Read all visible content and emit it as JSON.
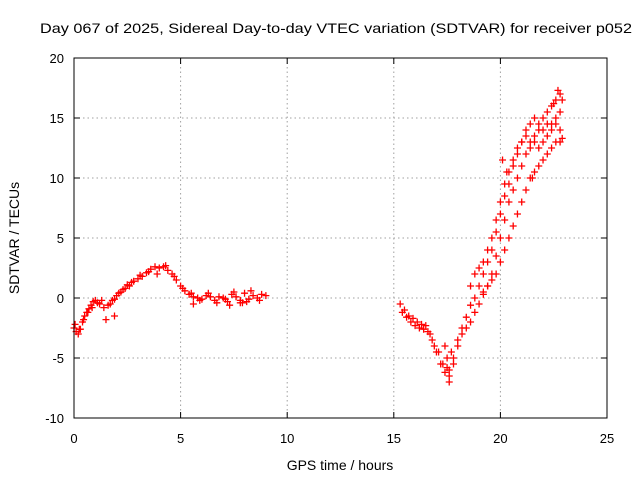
{
  "chart_data": {
    "type": "scatter",
    "title": "Day 067 of 2025, Sidereal Day-to-day VTEC variation (SDTVAR) for receiver p052",
    "xlabel": "GPS time / hours",
    "ylabel": "SDTVAR / TECUs",
    "xlim": [
      0,
      25
    ],
    "ylim": [
      -10,
      20
    ],
    "xticks": [
      "0",
      "5",
      "10",
      "15",
      "20",
      "25"
    ],
    "yticks": [
      "20",
      "15",
      "10",
      "5",
      "0",
      "-5",
      "-10"
    ],
    "xtick_values": [
      0,
      5,
      10,
      15,
      20,
      25
    ],
    "ytick_values": [
      20,
      15,
      10,
      5,
      0,
      -5,
      -10
    ],
    "grid": true,
    "marker": "+",
    "color": "#ff0000",
    "series": [
      {
        "name": "SDTVAR",
        "x": [
          0.0,
          0.1,
          0.2,
          0.3,
          0.4,
          0.5,
          0.6,
          0.7,
          0.8,
          0.9,
          1.0,
          1.2,
          1.4,
          1.6,
          1.8,
          2.0,
          2.2,
          2.4,
          2.6,
          2.8,
          3.0,
          3.2,
          3.4,
          3.6,
          3.8,
          4.0,
          4.2,
          4.4,
          4.6,
          4.8,
          5.0,
          5.2,
          5.4,
          5.6,
          5.8,
          6.0,
          6.2,
          6.4,
          6.6,
          6.8,
          7.0,
          7.2,
          7.4,
          7.6,
          7.8,
          8.0,
          8.2,
          8.4,
          8.6,
          8.8,
          9.0,
          0.05,
          0.25,
          0.45,
          0.65,
          0.85,
          1.1,
          1.3,
          1.7,
          1.9,
          2.1,
          2.3,
          2.5,
          2.7,
          3.1,
          3.5,
          3.9,
          4.3,
          4.7,
          5.1,
          5.5,
          5.9,
          6.3,
          6.7,
          7.1,
          7.5,
          7.9,
          8.3,
          8.7,
          1.5,
          1.9,
          5.6,
          7.3,
          7.8,
          8.1,
          15.3,
          15.5,
          15.7,
          15.9,
          16.1,
          16.3,
          16.5,
          16.7,
          16.9,
          17.1,
          17.3,
          17.5,
          17.6,
          17.8,
          18.0,
          18.2,
          18.4,
          18.6,
          18.8,
          19.0,
          19.2,
          19.4,
          19.6,
          19.8,
          20.0,
          20.2,
          20.4,
          20.6,
          20.8,
          21.0,
          21.2,
          21.4,
          21.6,
          21.8,
          22.0,
          22.2,
          22.4,
          22.6,
          22.8,
          22.9,
          15.4,
          15.6,
          15.8,
          16.0,
          16.2,
          16.4,
          16.6,
          16.8,
          17.0,
          17.2,
          17.4,
          17.6,
          17.8,
          18.0,
          18.2,
          18.4,
          18.6,
          18.8,
          19.0,
          19.2,
          19.4,
          19.6,
          19.8,
          20.0,
          20.2,
          20.4,
          20.6,
          20.8,
          21.0,
          21.2,
          21.4,
          21.6,
          21.8,
          22.0,
          22.2,
          22.4,
          22.6,
          22.8,
          18.6,
          18.8,
          19.0,
          19.2,
          19.4,
          19.6,
          19.8,
          20.0,
          20.2,
          20.4,
          20.6,
          20.8,
          21.0,
          21.2,
          21.4,
          21.6,
          21.8,
          22.0,
          22.2,
          22.4,
          22.6,
          22.8,
          19.2,
          19.4,
          19.6,
          19.8,
          20.0,
          20.2,
          20.4,
          20.6,
          20.8,
          21.0,
          21.2,
          21.4,
          21.6,
          21.8,
          22.0,
          22.2,
          22.4,
          22.6,
          22.8,
          22.9,
          17.4,
          17.5,
          17.6,
          17.7,
          20.1,
          20.3,
          21.5,
          22.5,
          22.7
        ],
        "y": [
          -2.5,
          -2.8,
          -3.0,
          -2.6,
          -2.0,
          -1.5,
          -1.2,
          -0.9,
          -0.6,
          -0.3,
          -0.2,
          -0.5,
          -0.8,
          -0.6,
          -0.2,
          0.2,
          0.5,
          0.8,
          1.0,
          1.4,
          1.6,
          1.8,
          2.1,
          2.4,
          2.6,
          2.5,
          2.6,
          2.3,
          2.0,
          1.5,
          1.0,
          0.6,
          0.3,
          0.1,
          0.0,
          -0.1,
          0.2,
          0.1,
          -0.2,
          0.1,
          0.0,
          -0.3,
          0.3,
          0.1,
          -0.2,
          0.4,
          -0.1,
          0.2,
          0.0,
          0.3,
          0.2,
          -2.2,
          -2.6,
          -1.8,
          -1.2,
          -0.8,
          -0.4,
          -0.2,
          -0.5,
          -0.1,
          0.4,
          0.7,
          1.1,
          1.3,
          1.9,
          2.2,
          2.0,
          2.7,
          1.8,
          0.8,
          0.4,
          -0.2,
          0.4,
          -0.4,
          -0.1,
          0.5,
          -0.4,
          0.6,
          -0.2,
          -1.8,
          -1.5,
          -0.5,
          -0.6,
          -0.4,
          -0.3,
          -0.5,
          -1.0,
          -1.5,
          -1.7,
          -2.0,
          -2.2,
          -2.3,
          -3.0,
          -4.0,
          -4.5,
          -5.5,
          -5.8,
          -6.5,
          -5.0,
          -3.5,
          -2.5,
          -1.6,
          -0.6,
          0.0,
          1.0,
          2.0,
          3.0,
          4.0,
          5.5,
          7.0,
          8.5,
          9.5,
          11.0,
          12.0,
          13.0,
          14.0,
          14.5,
          15.0,
          14.5,
          15.0,
          15.5,
          16.0,
          16.5,
          17.0,
          16.5,
          -1.2,
          -1.6,
          -2.0,
          -2.3,
          -2.5,
          -2.6,
          -2.8,
          -3.5,
          -4.5,
          -5.5,
          -6.2,
          -7.0,
          -5.5,
          -4.0,
          -3.0,
          -2.5,
          -2.0,
          -1.2,
          -0.5,
          0.3,
          1.0,
          2.0,
          3.5,
          5.0,
          6.5,
          8.0,
          9.0,
          10.0,
          11.0,
          12.0,
          12.5,
          13.0,
          12.5,
          13.0,
          13.5,
          14.0,
          14.5,
          14.0,
          1.0,
          2.0,
          2.5,
          3.0,
          4.0,
          5.0,
          6.5,
          8.0,
          9.5,
          10.5,
          11.5,
          12.5,
          13.0,
          13.5,
          13.0,
          13.5,
          14.0,
          14.0,
          14.5,
          14.5,
          15.0,
          15.5,
          0.5,
          1.0,
          1.5,
          2.0,
          3.0,
          4.0,
          5.0,
          6.0,
          7.0,
          8.0,
          9.0,
          10.0,
          10.5,
          11.0,
          11.5,
          12.0,
          12.5,
          13.0,
          13.0,
          13.3,
          -4.0,
          -5.0,
          -6.0,
          -4.5,
          11.5,
          10.5,
          10.0,
          16.2,
          17.3
        ]
      }
    ]
  }
}
